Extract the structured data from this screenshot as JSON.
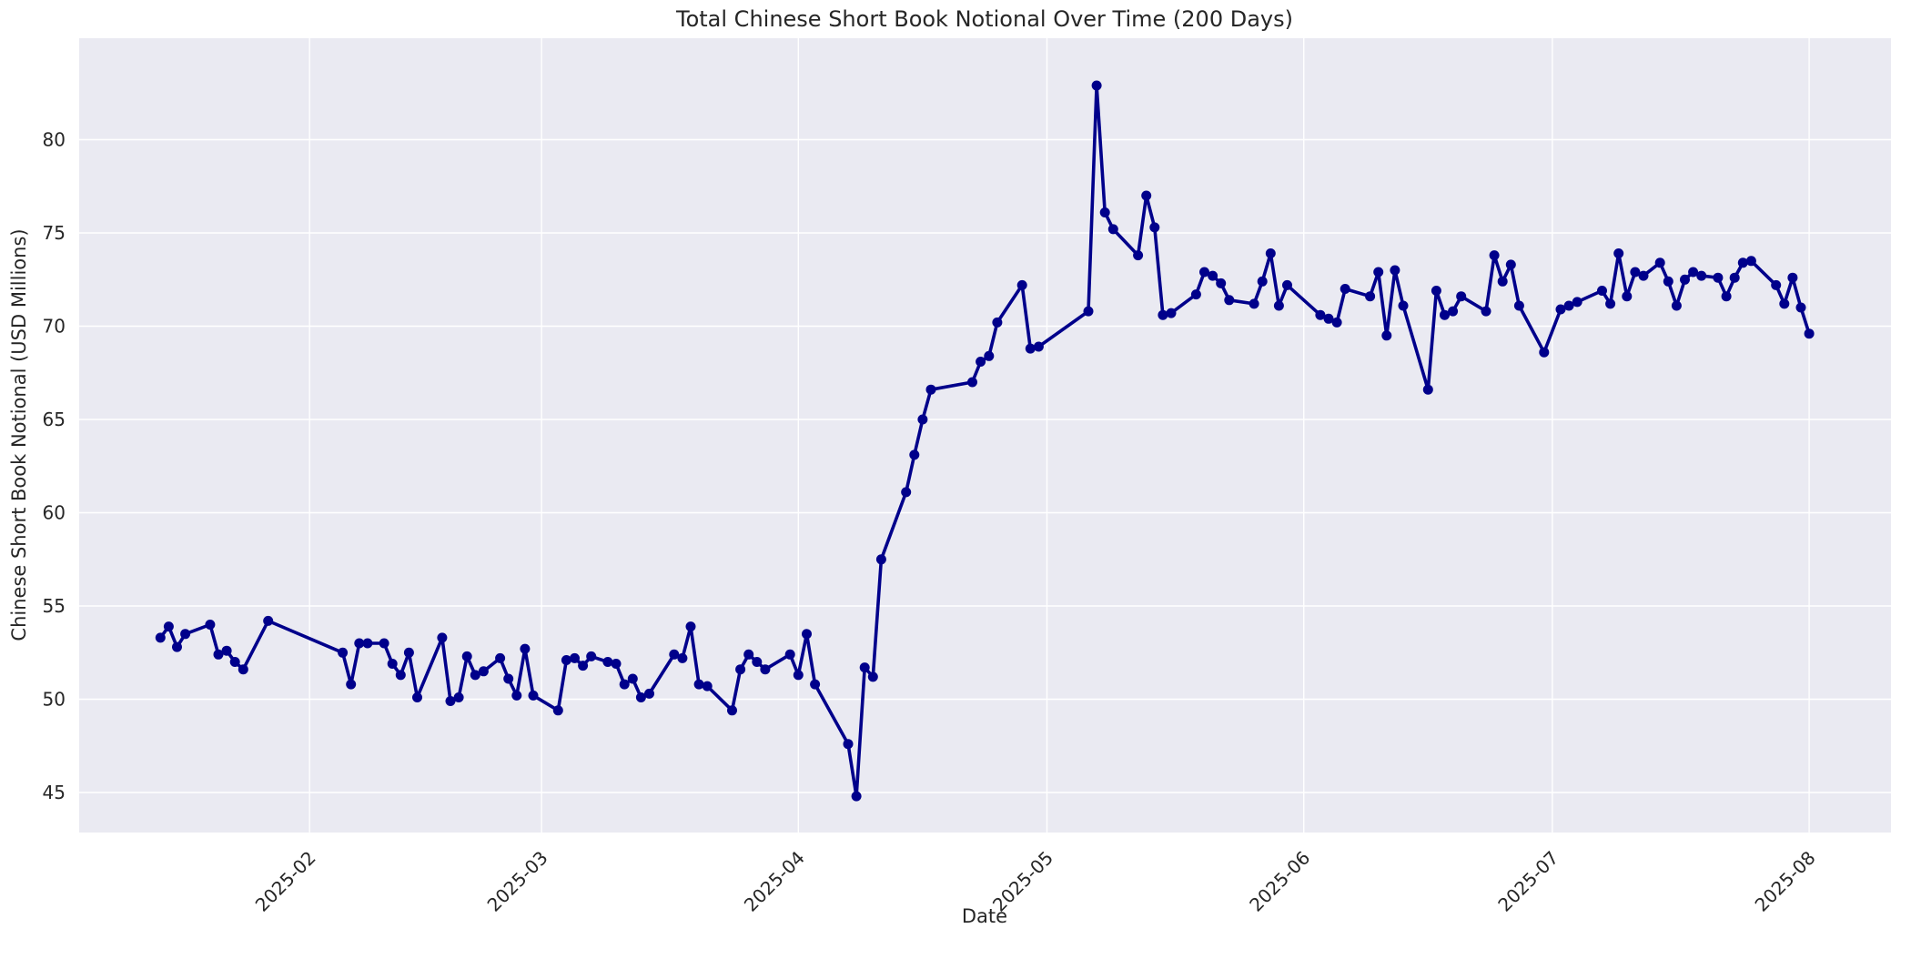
{
  "figure": {
    "background": "#FFFFFF"
  },
  "chart_data": {
    "type": "line",
    "title": "Total Chinese Short Book Notional Over Time (200 Days)",
    "xlabel": "Date",
    "ylabel": "Chinese Short Book Notional (USD Millions)",
    "legend": "none",
    "grid": "on",
    "plot_background": "#EAEAF2",
    "grid_color": "#FFFFFF",
    "line_color": "#00008B",
    "marker_color": "#00008B",
    "text_color": "#262626",
    "start_date": "2025-01-14",
    "end_date": "2025-08-01",
    "span_days": 200,
    "ylim": [
      42.8,
      85.5
    ],
    "yticks": [
      45,
      50,
      55,
      60,
      65,
      70,
      75,
      80
    ],
    "xticks": [
      {
        "label": "2025-02",
        "date": "2025-02-01"
      },
      {
        "label": "2025-03",
        "date": "2025-03-01"
      },
      {
        "label": "2025-04",
        "date": "2025-04-01"
      },
      {
        "label": "2025-05",
        "date": "2025-05-01"
      },
      {
        "label": "2025-06",
        "date": "2025-06-01"
      },
      {
        "label": "2025-07",
        "date": "2025-07-01"
      },
      {
        "label": "2025-08",
        "date": "2025-08-01"
      }
    ],
    "series": [
      {
        "name": "Total Chinese Short Book Notional",
        "dates": [
          "2025-01-14",
          "2025-01-15",
          "2025-01-16",
          "2025-01-17",
          "2025-01-20",
          "2025-01-21",
          "2025-01-22",
          "2025-01-23",
          "2025-01-24",
          "2025-01-27",
          "2025-02-05",
          "2025-02-06",
          "2025-02-07",
          "2025-02-08",
          "2025-02-10",
          "2025-02-11",
          "2025-02-12",
          "2025-02-13",
          "2025-02-14",
          "2025-02-17",
          "2025-02-18",
          "2025-02-19",
          "2025-02-20",
          "2025-02-21",
          "2025-02-22",
          "2025-02-24",
          "2025-02-25",
          "2025-02-26",
          "2025-02-27",
          "2025-02-28",
          "2025-03-03",
          "2025-03-04",
          "2025-03-05",
          "2025-03-06",
          "2025-03-07",
          "2025-03-09",
          "2025-03-10",
          "2025-03-11",
          "2025-03-12",
          "2025-03-13",
          "2025-03-14",
          "2025-03-17",
          "2025-03-18",
          "2025-03-19",
          "2025-03-20",
          "2025-03-21",
          "2025-03-24",
          "2025-03-25",
          "2025-03-26",
          "2025-03-27",
          "2025-03-28",
          "2025-03-31",
          "2025-04-01",
          "2025-04-02",
          "2025-04-03",
          "2025-04-07",
          "2025-04-08",
          "2025-04-09",
          "2025-04-10",
          "2025-04-11",
          "2025-04-14",
          "2025-04-15",
          "2025-04-16",
          "2025-04-17",
          "2025-04-22",
          "2025-04-23",
          "2025-04-24",
          "2025-04-25",
          "2025-04-28",
          "2025-04-29",
          "2025-04-30",
          "2025-05-06",
          "2025-05-07",
          "2025-05-08",
          "2025-05-09",
          "2025-05-12",
          "2025-05-13",
          "2025-05-14",
          "2025-05-15",
          "2025-05-16",
          "2025-05-19",
          "2025-05-20",
          "2025-05-21",
          "2025-05-22",
          "2025-05-23",
          "2025-05-26",
          "2025-05-27",
          "2025-05-28",
          "2025-05-29",
          "2025-05-30",
          "2025-06-03",
          "2025-06-04",
          "2025-06-05",
          "2025-06-06",
          "2025-06-09",
          "2025-06-10",
          "2025-06-11",
          "2025-06-12",
          "2025-06-13",
          "2025-06-16",
          "2025-06-17",
          "2025-06-18",
          "2025-06-19",
          "2025-06-20",
          "2025-06-23",
          "2025-06-24",
          "2025-06-25",
          "2025-06-26",
          "2025-06-27",
          "2025-06-30",
          "2025-07-02",
          "2025-07-03",
          "2025-07-04",
          "2025-07-07",
          "2025-07-08",
          "2025-07-09",
          "2025-07-10",
          "2025-07-11",
          "2025-07-12",
          "2025-07-14",
          "2025-07-15",
          "2025-07-16",
          "2025-07-17",
          "2025-07-18",
          "2025-07-19",
          "2025-07-21",
          "2025-07-22",
          "2025-07-23",
          "2025-07-24",
          "2025-07-25",
          "2025-07-28",
          "2025-07-29",
          "2025-07-30",
          "2025-07-31",
          "2025-08-01"
        ],
        "values": [
          53.3,
          53.9,
          52.8,
          53.5,
          54.0,
          52.4,
          52.6,
          52.0,
          51.6,
          54.2,
          52.5,
          50.8,
          53.0,
          53.0,
          53.0,
          51.9,
          51.3,
          52.5,
          50.1,
          53.3,
          49.9,
          50.1,
          52.3,
          51.3,
          51.5,
          52.2,
          51.1,
          50.2,
          52.7,
          50.2,
          49.4,
          52.1,
          52.2,
          51.8,
          52.3,
          52.0,
          51.9,
          50.8,
          51.1,
          50.1,
          50.3,
          52.4,
          52.2,
          53.9,
          50.8,
          50.7,
          49.4,
          51.6,
          52.4,
          52.0,
          51.6,
          52.4,
          51.3,
          53.5,
          50.8,
          47.6,
          44.8,
          51.7,
          51.2,
          57.5,
          61.1,
          63.1,
          65.0,
          66.6,
          67.0,
          68.1,
          68.4,
          70.2,
          72.2,
          68.8,
          68.9,
          70.8,
          82.9,
          76.1,
          75.2,
          73.8,
          77.0,
          75.3,
          70.6,
          70.7,
          71.7,
          72.9,
          72.7,
          72.3,
          71.4,
          71.2,
          72.4,
          73.9,
          71.1,
          72.2,
          70.6,
          70.4,
          70.2,
          72.0,
          71.6,
          72.9,
          69.5,
          73.0,
          71.1,
          66.6,
          71.9,
          70.6,
          70.8,
          71.6,
          70.8,
          73.8,
          72.4,
          73.3,
          71.1,
          68.6,
          70.9,
          71.1,
          71.3,
          71.9,
          71.2,
          73.9,
          71.6,
          72.9,
          72.7,
          73.4,
          72.4,
          71.1,
          72.5,
          72.9,
          72.7,
          72.6,
          71.6,
          72.6,
          73.4,
          73.5,
          72.2,
          71.2,
          72.6,
          71.0,
          69.6
        ]
      }
    ]
  }
}
